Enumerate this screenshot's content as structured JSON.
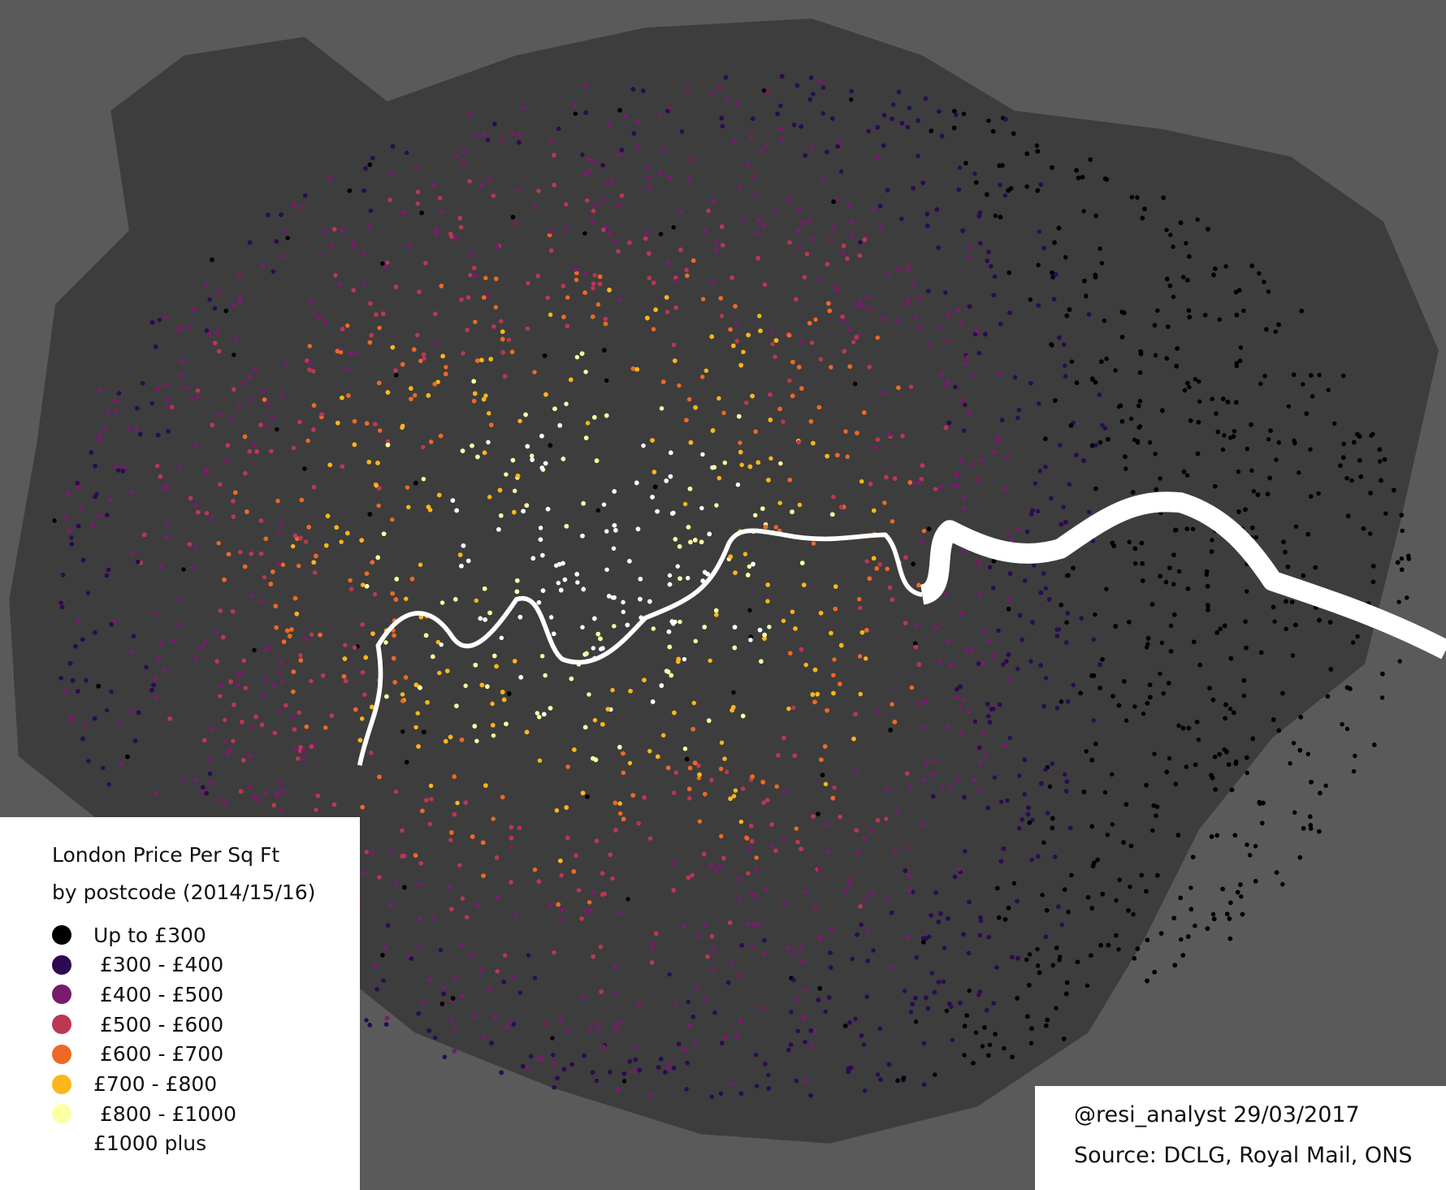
{
  "legend": {
    "title": [
      "London Price Per Sq Ft",
      "by postcode (2014/15/16)"
    ],
    "items": [
      {
        "label": "Up to £300",
        "color": "#000000"
      },
      {
        "label": " £300 - £400",
        "color": "#2d0a52"
      },
      {
        "label": " £400 - £500",
        "color": "#781c6d"
      },
      {
        "label": " £500 - £600",
        "color": "#bb3754"
      },
      {
        "label": " £600 - £700",
        "color": "#ed6925"
      },
      {
        "label": "£700 - £800",
        "color": "#fbb61a"
      },
      {
        "label": " £800 - £1000",
        "color": "#fcffa4"
      },
      {
        "label": "£1000 plus",
        "color": "#ffffff"
      }
    ]
  },
  "credit": {
    "author": "@resi_analyst 29/03/2017",
    "source": "Source: DCLG, Royal Mail, ONS"
  }
}
